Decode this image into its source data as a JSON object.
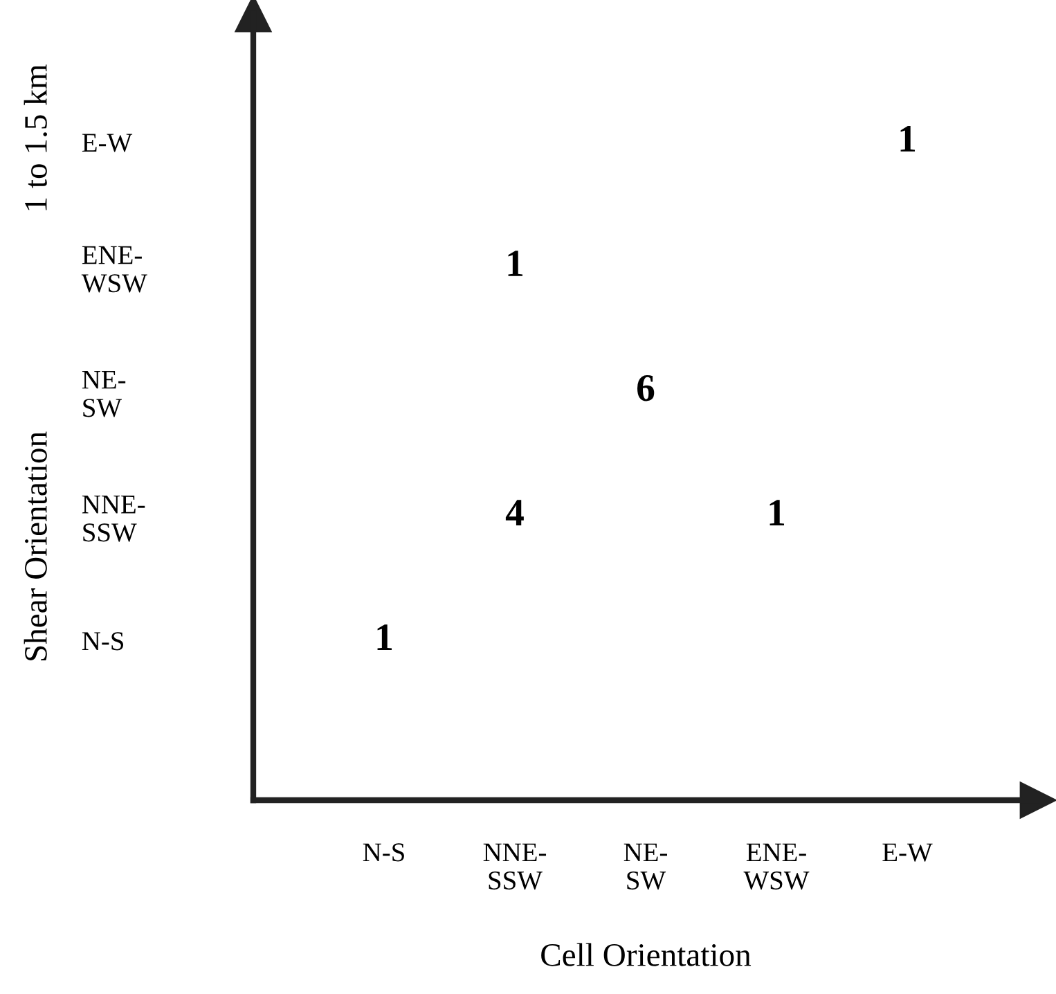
{
  "chart_data": {
    "type": "heatmap",
    "xlabel": "Cell Orientation",
    "ylabel": "Shear Orientation",
    "annotations": [
      "1 to 1.5 km"
    ],
    "categories": [
      "N-S",
      "NNE-\nSSW",
      "NE-\nSW",
      "ENE-\nWSW",
      "E-W"
    ],
    "y_categories": [
      "E-W",
      "ENE-\nWSW",
      "NE-\nSW",
      "NNE-\nSSW",
      "N-S"
    ],
    "cells": [
      [
        null,
        null,
        null,
        null,
        1
      ],
      [
        null,
        1,
        null,
        null,
        null
      ],
      [
        null,
        null,
        6,
        null,
        null
      ],
      [
        null,
        4,
        null,
        1,
        null
      ],
      [
        1,
        null,
        null,
        null,
        null
      ]
    ],
    "data_labels": true,
    "grid": false
  }
}
